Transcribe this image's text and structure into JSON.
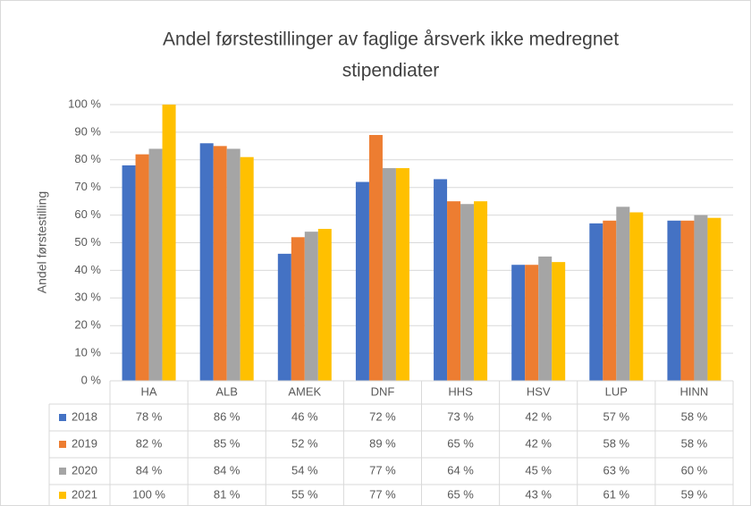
{
  "chart_data": {
    "type": "bar",
    "title": [
      "Andel førstestillinger av faglige årsverk ikke medregnet",
      "stipendiater"
    ],
    "y_label": "Andel førstestilling",
    "categories": [
      "HA",
      "ALB",
      "AMEK",
      "DNF",
      "HHS",
      "HSV",
      "LUP",
      "HINN"
    ],
    "series": [
      {
        "name": "2018",
        "color": "#4472c4",
        "values": [
          78,
          86,
          46,
          72,
          73,
          42,
          57,
          58
        ],
        "value_labels": [
          "78 %",
          "86 %",
          "46 %",
          "72 %",
          "73 %",
          "42 %",
          "57 %",
          "58 %"
        ]
      },
      {
        "name": "2019",
        "color": "#ed7d31",
        "values": [
          82,
          85,
          52,
          89,
          65,
          42,
          58,
          58
        ],
        "value_labels": [
          "82 %",
          "85 %",
          "52 %",
          "89 %",
          "65 %",
          "42 %",
          "58 %",
          "58 %"
        ]
      },
      {
        "name": "2020",
        "color": "#a5a5a5",
        "values": [
          84,
          84,
          54,
          77,
          64,
          45,
          63,
          60
        ],
        "value_labels": [
          "84 %",
          "84 %",
          "54 %",
          "77 %",
          "64 %",
          "45 %",
          "63 %",
          "60 %"
        ]
      },
      {
        "name": "2021",
        "color": "#ffc000",
        "values": [
          100,
          81,
          55,
          77,
          65,
          43,
          61,
          59
        ],
        "value_labels": [
          "100 %",
          "81 %",
          "55 %",
          "77 %",
          "65 %",
          "43 %",
          "61 %",
          "59 %"
        ]
      }
    ],
    "ylim": [
      0,
      100
    ],
    "yticks": [
      {
        "value": 0,
        "label": "0 %"
      },
      {
        "value": 10,
        "label": "10 %"
      },
      {
        "value": 20,
        "label": "20 %"
      },
      {
        "value": 30,
        "label": "30 %"
      },
      {
        "value": 40,
        "label": "40 %"
      },
      {
        "value": 50,
        "label": "50 %"
      },
      {
        "value": 60,
        "label": "60 %"
      },
      {
        "value": 70,
        "label": "70 %"
      },
      {
        "value": 80,
        "label": "80 %"
      },
      {
        "value": 90,
        "label": "90 %"
      },
      {
        "value": 100,
        "label": "100 %"
      }
    ],
    "grid": true
  }
}
